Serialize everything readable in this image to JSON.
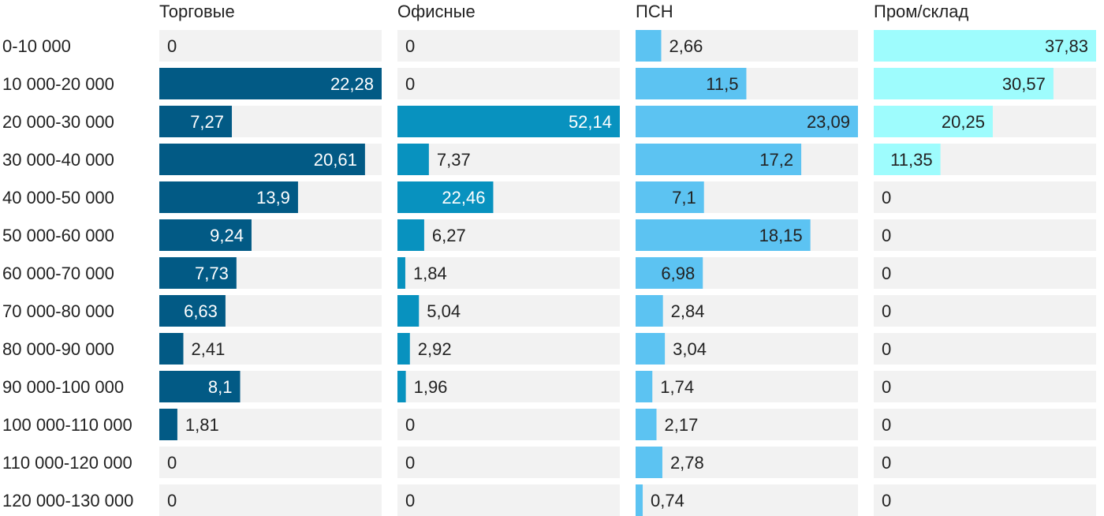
{
  "chart_data": {
    "type": "bar",
    "orientation": "horizontal",
    "layout": "small-multiples",
    "categories": [
      "0-10 000",
      "10 000-20 000",
      "20 000-30 000",
      "30 000-40 000",
      "40 000-50 000",
      "50 000-60 000",
      "60 000-70 000",
      "70 000-80 000",
      "80 000-90 000",
      "90 000-100 000",
      "100 000-110 000",
      "110 000-120 000",
      "120 000-130 000"
    ],
    "series": [
      {
        "name": "Торговые",
        "color": "#025a85",
        "max": 22.28,
        "values": [
          0,
          22.28,
          7.27,
          20.61,
          13.9,
          9.24,
          7.73,
          6.63,
          2.41,
          8.1,
          1.81,
          0,
          0
        ],
        "labels": [
          "0",
          "22,28",
          "7,27",
          "20,61",
          "13,9",
          "9,24",
          "7,73",
          "6,63",
          "2,41",
          "8,1",
          "1,81",
          "0",
          "0"
        ]
      },
      {
        "name": "Офисные",
        "color": "#0892bf",
        "max": 52.14,
        "values": [
          0,
          0,
          52.14,
          7.37,
          22.46,
          6.27,
          1.84,
          5.04,
          2.92,
          1.96,
          0,
          0,
          0
        ],
        "labels": [
          "0",
          "0",
          "52,14",
          "7,37",
          "22,46",
          "6,27",
          "1,84",
          "5,04",
          "2,92",
          "1,96",
          "0",
          "0",
          "0"
        ]
      },
      {
        "name": "ПСН",
        "color": "#5cc3f2",
        "max": 23.09,
        "values": [
          2.66,
          11.5,
          23.09,
          17.2,
          7.1,
          18.15,
          6.98,
          2.84,
          3.04,
          1.74,
          2.17,
          2.78,
          0.74
        ],
        "labels": [
          "2,66",
          "11,5",
          "23,09",
          "17,2",
          "7,1",
          "18,15",
          "6,98",
          "2,84",
          "3,04",
          "1,74",
          "2,17",
          "2,78",
          "0,74"
        ]
      },
      {
        "name": "Пром/склад",
        "color": "#9efcfd",
        "max": 37.83,
        "values": [
          37.83,
          30.57,
          20.25,
          11.35,
          0,
          0,
          0,
          0,
          0,
          0,
          0,
          0,
          0
        ],
        "labels": [
          "37,83",
          "30,57",
          "20,25",
          "11,35",
          "0",
          "0",
          "0",
          "0",
          "0",
          "0",
          "0",
          "0",
          "0"
        ]
      }
    ],
    "grid": false,
    "legend": "none",
    "colors": {
      "track": "#f2f2f2",
      "text_dark": "#222222",
      "text_light": "#ffffff"
    }
  }
}
